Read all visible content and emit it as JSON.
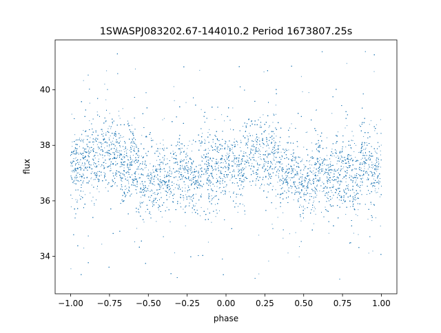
{
  "chart_data": {
    "type": "scatter",
    "title": "1SWASPJ083202.67-144010.2 Period 1673807.25s",
    "xlabel": "phase",
    "ylabel": "flux",
    "xlim": [
      -1.1,
      1.1
    ],
    "ylim": [
      32.65,
      41.8
    ],
    "x_ticks": [
      -1.0,
      -0.75,
      -0.5,
      -0.25,
      0.0,
      0.25,
      0.5,
      0.75,
      1.0
    ],
    "x_tick_labels": [
      "−1.00",
      "−0.75",
      "−0.50",
      "−0.25",
      "0.00",
      "0.25",
      "0.50",
      "0.75",
      "1.00"
    ],
    "y_ticks": [
      34,
      36,
      38,
      40
    ],
    "y_tick_labels": [
      "34",
      "36",
      "38",
      "40"
    ],
    "grid": false,
    "point_color": "#1f77b4",
    "series": [
      {
        "x_range": [
          -1.0,
          1.0
        ],
        "profile_phase": [
          -1.0,
          -0.9,
          -0.8,
          -0.7,
          -0.6,
          -0.5,
          -0.4,
          -0.3,
          -0.2,
          -0.1,
          0.0,
          0.1,
          0.2,
          0.3,
          0.4,
          0.5,
          0.6,
          0.7,
          0.8,
          0.9,
          1.0
        ],
        "profile_median_flux": [
          37.3,
          37.4,
          37.8,
          37.6,
          37.2,
          36.6,
          36.9,
          37.0,
          36.9,
          37.1,
          37.2,
          37.3,
          37.8,
          37.6,
          37.1,
          36.6,
          36.9,
          37.0,
          36.9,
          37.1,
          37.3
        ],
        "core_spread": 0.9,
        "outlier_range": [
          33.0,
          41.4
        ],
        "n_points": 14000
      }
    ]
  }
}
